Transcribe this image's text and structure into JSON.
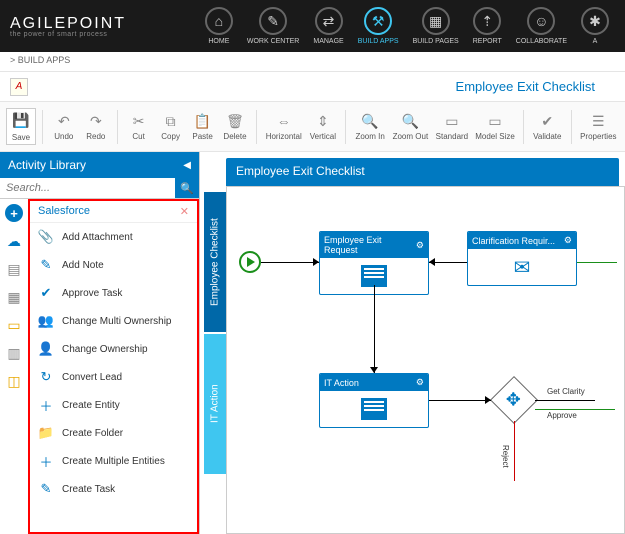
{
  "brand": {
    "name": "AGILEPOINT",
    "tagline": "the power of smart process"
  },
  "nav": [
    {
      "label": "HOME",
      "glyph": "⌂"
    },
    {
      "label": "WORK CENTER",
      "glyph": "✎"
    },
    {
      "label": "MANAGE",
      "glyph": "⇄"
    },
    {
      "label": "BUILD APPS",
      "glyph": "⚒",
      "active": true
    },
    {
      "label": "BUILD PAGES",
      "glyph": "▦"
    },
    {
      "label": "REPORT",
      "glyph": "⇡"
    },
    {
      "label": "COLLABORATE",
      "glyph": "☺"
    },
    {
      "label": "A",
      "glyph": "✱"
    }
  ],
  "breadcrumb": "> BUILD APPS",
  "page_title": "Employee Exit Checklist",
  "toolbar": {
    "save": "Save",
    "undo": "Undo",
    "redo": "Redo",
    "cut": "Cut",
    "copy": "Copy",
    "paste": "Paste",
    "delete": "Delete",
    "horizontal": "Horizontal",
    "vertical": "Vertical",
    "zoom_in": "Zoom In",
    "zoom_out": "Zoom Out",
    "standard": "Standard",
    "model_size": "Model Size",
    "validate": "Validate",
    "properties": "Properties"
  },
  "panel": {
    "title": "Activity Library",
    "search_placeholder": "Search...",
    "category": "Salesforce",
    "items": [
      {
        "label": "Add Attachment",
        "glyph": "📎"
      },
      {
        "label": "Add Note",
        "glyph": "✎"
      },
      {
        "label": "Approve Task",
        "glyph": "✔"
      },
      {
        "label": "Change Multi Ownership",
        "glyph": "👥"
      },
      {
        "label": "Change Ownership",
        "glyph": "👤"
      },
      {
        "label": "Convert Lead",
        "glyph": "↻"
      },
      {
        "label": "Create Entity",
        "glyph": "＋"
      },
      {
        "label": "Create Folder",
        "glyph": "📁"
      },
      {
        "label": "Create Multiple Entities",
        "glyph": "＋"
      },
      {
        "label": "Create Task",
        "glyph": "✎"
      }
    ]
  },
  "canvas": {
    "title": "Employee Exit Checklist",
    "lanes": {
      "l1": "Employee Checklist",
      "l2": "IT Action"
    },
    "nodes": {
      "n1": "Employee Exit Request",
      "n2": "Clarification Requir...",
      "n3": "IT Action"
    },
    "gw_labels": {
      "a": "Get Clarity",
      "b": "Approve",
      "c": "Reject"
    }
  },
  "colors": {
    "primary": "#0079c1",
    "accent": "#3fc6f0",
    "dark": "#1a1a1a"
  }
}
